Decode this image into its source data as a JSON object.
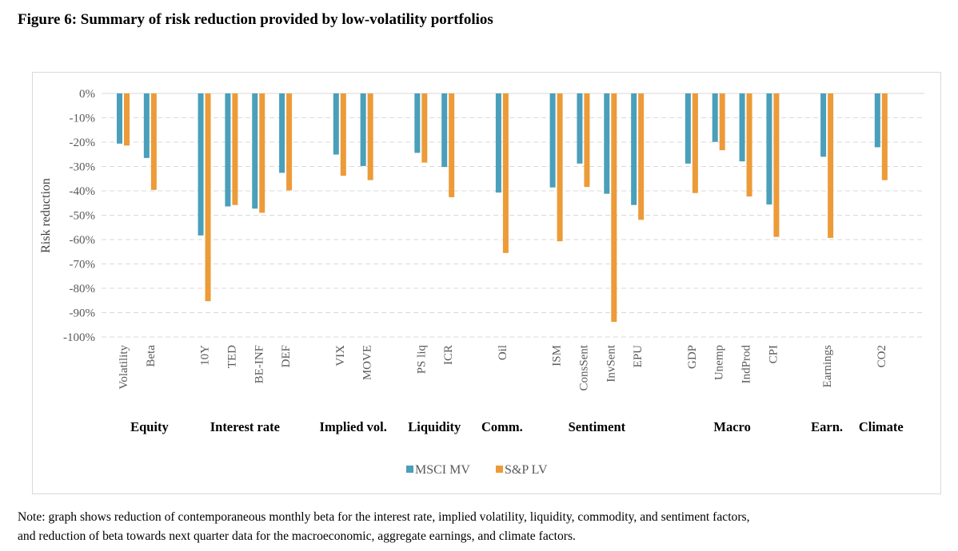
{
  "title": "Figure 6: Summary of risk reduction provided by low-volatility portfolios",
  "note_lines": [
    "Note: graph shows reduction of contemporaneous monthly beta for the interest rate, implied volatility, liquidity, commodity, and sentiment factors,",
    "and reduction of beta towards next quarter data for the macroeconomic, aggregate earnings, and climate factors."
  ],
  "chart_data": {
    "type": "bar",
    "title": "",
    "xlabel": "",
    "ylabel": "Risk reduction",
    "ylim": [
      -100,
      0
    ],
    "yticks": [
      "0%",
      "-10%",
      "-20%",
      "-30%",
      "-40%",
      "-50%",
      "-60%",
      "-70%",
      "-80%",
      "-90%",
      "-100%"
    ],
    "grid": true,
    "legend": "bottom",
    "colors": {
      "MSCI MV": "#4a9fba",
      "S&P LV": "#ec9b38"
    },
    "groups": [
      {
        "name": "Equity",
        "categories": [
          "Volatility",
          "Beta"
        ]
      },
      {
        "name": "Interest rate",
        "categories": [
          "10Y",
          "TED",
          "BE-INF",
          "DEF"
        ]
      },
      {
        "name": "Implied vol.",
        "categories": [
          "VIX",
          "MOVE"
        ]
      },
      {
        "name": "Liquidity",
        "categories": [
          "PS liq",
          "ICR"
        ]
      },
      {
        "name": "Comm.",
        "categories": [
          "Oil"
        ]
      },
      {
        "name": "Sentiment",
        "categories": [
          "ISM",
          "ConsSent",
          "InvSent",
          "EPU"
        ]
      },
      {
        "name": "Macro",
        "categories": [
          "GDP",
          "Unemp",
          "IndProd",
          "CPI"
        ]
      },
      {
        "name": "Earn.",
        "categories": [
          "Earnings"
        ]
      },
      {
        "name": "Climate",
        "categories": [
          "CO2"
        ]
      }
    ],
    "categories": [
      "Volatility",
      "Beta",
      "10Y",
      "TED",
      "BE-INF",
      "DEF",
      "VIX",
      "MOVE",
      "PS liq",
      "ICR",
      "Oil",
      "ISM",
      "ConsSent",
      "InvSent",
      "EPU",
      "GDP",
      "Unemp",
      "IndProd",
      "CPI",
      "Earnings",
      "CO2"
    ],
    "series": [
      {
        "name": "MSCI MV",
        "values": [
          -20.6,
          -26.5,
          -58.3,
          -46.4,
          -47.3,
          -32.6,
          -25.1,
          -29.8,
          -24.4,
          -30.2,
          -40.7,
          -38.6,
          -28.8,
          -41.2,
          -45.8,
          -28.8,
          -19.9,
          -27.9,
          -45.6,
          -26.0,
          -22.1
        ]
      },
      {
        "name": "S&P LV",
        "values": [
          -21.4,
          -39.6,
          -85.3,
          -45.8,
          -49.0,
          -39.8,
          -33.8,
          -35.6,
          -28.4,
          -42.6,
          -65.5,
          -60.7,
          -38.4,
          -93.8,
          -51.9,
          -40.9,
          -23.3,
          -42.3,
          -58.9,
          -59.3,
          -35.6
        ]
      }
    ]
  }
}
